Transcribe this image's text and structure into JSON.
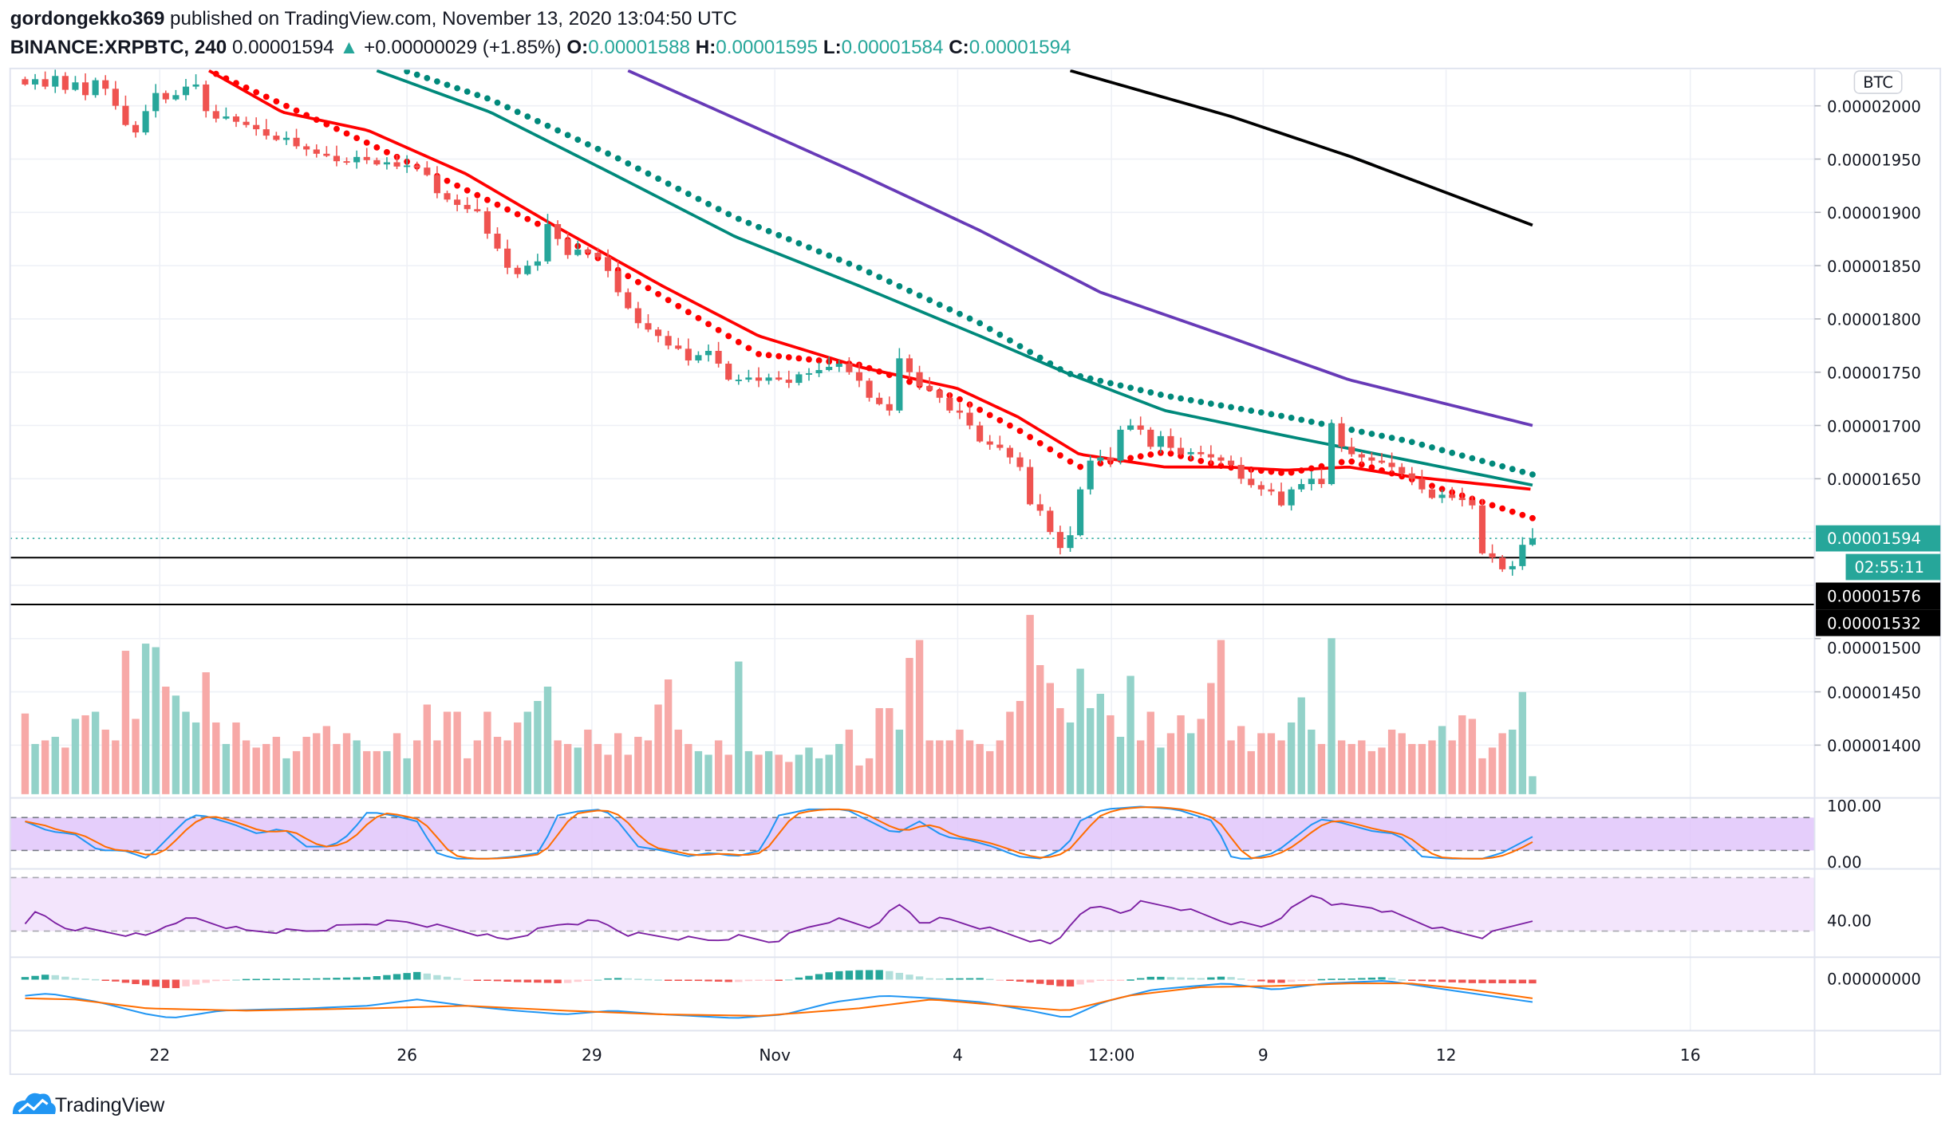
{
  "header": {
    "author": "gordongekko369",
    "published": " published on TradingView.com, November 13, 2020 13:04:50 UTC",
    "symbol": "BINANCE:XRPBTC, 240",
    "last": "0.00001594",
    "change": "+0.00000029 (+1.85%)",
    "o_label": "O:",
    "o": "0.00001588",
    "h_label": "H:",
    "h": "0.00001595",
    "l_label": "L:",
    "l": "0.00001584",
    "c_label": "C:",
    "c": "0.00001594",
    "direction_icon": "triangle-up-icon"
  },
  "price_axis": {
    "currency_badge": "BTC",
    "ticks": [
      "0.00002000",
      "0.00001950",
      "0.00001900",
      "0.00001850",
      "0.00001800",
      "0.00001750",
      "0.00001700",
      "0.00001650",
      "0.00001500",
      "0.00001450",
      "0.00001400"
    ],
    "last_price_label": "0.00001594",
    "countdown": "02:55:11",
    "line_labels": [
      "0.00001576",
      "0.00001532"
    ]
  },
  "stoch_axis": {
    "ticks": [
      "100.00",
      "0.00"
    ]
  },
  "rsi_axis": {
    "ticks": [
      "40.00"
    ]
  },
  "macd_axis": {
    "ticks": [
      "0.00000000"
    ]
  },
  "time_axis": {
    "labels": [
      {
        "text": "22",
        "bar": 13.4
      },
      {
        "text": "26",
        "bar": 38
      },
      {
        "text": "29",
        "bar": 56.4
      },
      {
        "text": "Nov",
        "bar": 74.6
      },
      {
        "text": "4",
        "bar": 92.8
      },
      {
        "text": "12:00",
        "bar": 108.1
      },
      {
        "text": "9",
        "bar": 123.2
      },
      {
        "text": "12",
        "bar": 141.4
      },
      {
        "text": "16",
        "bar": 165.7
      }
    ]
  },
  "footer": {
    "brand": "TradingView",
    "logo_icon": "tradingview-cloud-icon"
  },
  "colors": {
    "up": "#26a69a",
    "down": "#ef5350",
    "vol_up": "#93d2c9",
    "vol_down": "#f7a9a7",
    "ema_fast": "#ff0000",
    "sma_mid": "#00897b",
    "ma_100": "#673ab7",
    "ma_200": "#000000",
    "stoch_k": "#2196f3",
    "stoch_d": "#ff6d00",
    "rsi": "#7b1fa2",
    "macd": "#2196f3",
    "signal": "#ff6d00"
  },
  "chart_data": {
    "type": "candlestick",
    "interval": "240",
    "close": [
      2.02e-05,
      2.025e-05,
      2.018e-05,
      2.028e-05,
      2.015e-05,
      2.022e-05,
      2.01e-05,
      2.024e-05,
      2.016e-05,
      2e-05,
      1.982e-05,
      1.975e-05,
      1.995e-05,
      2.012e-05,
      2.006e-05,
      2.01e-05,
      2.018e-05,
      2.02e-05,
      1.995e-05,
      1.988e-05,
      1.99e-05,
      1.985e-05,
      1.982e-05,
      1.978e-05,
      1.972e-05,
      1.968e-05,
      1.97e-05,
      1.962e-05,
      1.959e-05,
      1.955e-05,
      1.953e-05,
      1.948e-05,
      1.947e-05,
      1.952e-05,
      1.949e-05,
      1.945e-05,
      1.947e-05,
      1.943e-05,
      1.944e-05,
      1.942e-05,
      1.935e-05,
      1.918e-05,
      1.912e-05,
      1.907e-05,
      1.903e-05,
      1.901e-05,
      1.88e-05,
      1.866e-05,
      1.848e-05,
      1.842e-05,
      1.85e-05,
      1.854e-05,
      1.889e-05,
      1.875e-05,
      1.86e-05,
      1.865e-05,
      1.862e-05,
      1.858e-05,
      1.845e-05,
      1.825e-05,
      1.81e-05,
      1.796e-05,
      1.79e-05,
      1.784e-05,
      1.775e-05,
      1.772e-05,
      1.761e-05,
      1.766e-05,
      1.77e-05,
      1.758e-05,
      1.743e-05,
      1.743e-05,
      1.745e-05,
      1.742e-05,
      1.745e-05,
      1.743e-05,
      1.74e-05,
      1.748e-05,
      1.749e-05,
      1.752e-05,
      1.755e-05,
      1.758e-05,
      1.75e-05,
      1.742e-05,
      1.726e-05,
      1.72e-05,
      1.714e-05,
      1.763e-05,
      1.75e-05,
      1.737e-05,
      1.733e-05,
      1.726e-05,
      1.714e-05,
      1.712e-05,
      1.7e-05,
      1.685e-05,
      1.682e-05,
      1.679e-05,
      1.67e-05,
      1.661e-05,
      1.626e-05,
      1.62e-05,
      1.6e-05,
      1.585e-05,
      1.597e-05,
      1.64e-05,
      1.667e-05,
      1.67e-05,
      1.667e-05,
      1.696e-05,
      1.7e-05,
      1.696e-05,
      1.68e-05,
      1.69e-05,
      1.679e-05,
      1.673e-05,
      1.675e-05,
      1.673e-05,
      1.67e-05,
      1.667e-05,
      1.663e-05,
      1.65e-05,
      1.644e-05,
      1.64e-05,
      1.638e-05,
      1.625e-05,
      1.64e-05,
      1.645e-05,
      1.65e-05,
      1.645e-05,
      1.702e-05,
      1.68e-05,
      1.673e-05,
      1.67e-05,
      1.667e-05,
      1.665e-05,
      1.661e-05,
      1.655e-05,
      1.65e-05,
      1.64e-05,
      1.632e-05,
      1.635e-05,
      1.632e-05,
      1.63e-05,
      1.625e-05,
      1.58e-05,
      1.576e-05,
      1.565e-05,
      1.568e-05,
      1.588e-05,
      1.594e-05
    ],
    "volume_relative": [
      45,
      28,
      30,
      32,
      26,
      42,
      44,
      46,
      36,
      30,
      80,
      42,
      84,
      82,
      60,
      55,
      46,
      40,
      68,
      40,
      28,
      40,
      30,
      26,
      28,
      32,
      20,
      24,
      32,
      34,
      38,
      28,
      34,
      30,
      24,
      24,
      24,
      34,
      20,
      30,
      50,
      30,
      46,
      46,
      20,
      30,
      46,
      32,
      30,
      40,
      46,
      52,
      60,
      30,
      28,
      26,
      36,
      28,
      22,
      34,
      22,
      32,
      30,
      50,
      64,
      36,
      28,
      24,
      22,
      30,
      22,
      74,
      24,
      22,
      24,
      22,
      18,
      22,
      26,
      20,
      22,
      28,
      36,
      16,
      20,
      48,
      48,
      36,
      76,
      86,
      30,
      30,
      30,
      36,
      30,
      28,
      24,
      30,
      46,
      52,
      100,
      72,
      62,
      48,
      40,
      70,
      48,
      56,
      44,
      32,
      66,
      30,
      46,
      26,
      34,
      44,
      34,
      42,
      62,
      86,
      30,
      38,
      24,
      34,
      34,
      30,
      40,
      54,
      36,
      28,
      87,
      30,
      28,
      30,
      24,
      26,
      36,
      34,
      28,
      28,
      30,
      38,
      30,
      44,
      42,
      20,
      26,
      34,
      36,
      57,
      10
    ],
    "moving_averages": [
      {
        "style": "line",
        "color": "#000000",
        "points": [
          [
            104,
            2.033e-05
          ],
          [
            120,
            1.99e-05
          ],
          [
            132,
            1.952e-05
          ],
          [
            150,
            1.888e-05
          ]
        ]
      },
      {
        "style": "line",
        "color": "#673ab7",
        "points": [
          [
            60,
            2.033e-05
          ],
          [
            70.7,
            1.988e-05
          ],
          [
            83,
            1.936e-05
          ],
          [
            95,
            1.883e-05
          ],
          [
            107,
            1.825e-05
          ],
          [
            119.5,
            1.784e-05
          ],
          [
            131.7,
            1.743e-05
          ],
          [
            150,
            1.7e-05
          ]
        ]
      },
      {
        "style": "line",
        "color": "#00897b",
        "points": [
          [
            35,
            2.033e-05
          ],
          [
            46.3,
            1.994e-05
          ],
          [
            58.5,
            1.936e-05
          ],
          [
            70.7,
            1.877e-05
          ],
          [
            83,
            1.831e-05
          ],
          [
            95,
            1.784e-05
          ],
          [
            103.7,
            1.749e-05
          ],
          [
            113.4,
            1.714e-05
          ],
          [
            125.6,
            1.69e-05
          ],
          [
            137.8,
            1.667e-05
          ],
          [
            150,
            1.644e-05
          ]
        ]
      },
      {
        "style": "dots",
        "color": "#00897b",
        "points": [
          [
            37.8,
            2.033e-05
          ],
          [
            46.3,
            2.006e-05
          ],
          [
            58.5,
            1.953e-05
          ],
          [
            70.7,
            1.895e-05
          ],
          [
            83,
            1.848e-05
          ],
          [
            95,
            1.796e-05
          ],
          [
            103.7,
            1.749e-05
          ],
          [
            113.4,
            1.728e-05
          ],
          [
            125.6,
            1.708e-05
          ],
          [
            137.8,
            1.685e-05
          ],
          [
            150,
            1.654e-05
          ]
        ]
      },
      {
        "style": "line",
        "color": "#ff0000",
        "points": [
          [
            18.3,
            2.033e-05
          ],
          [
            25.6,
            1.994e-05
          ],
          [
            34.1,
            1.977e-05
          ],
          [
            43.9,
            1.936e-05
          ],
          [
            52.4,
            1.889e-05
          ],
          [
            63.4,
            1.831e-05
          ],
          [
            73,
            1.784e-05
          ],
          [
            83,
            1.755e-05
          ],
          [
            92.7,
            1.735e-05
          ],
          [
            98.8,
            1.708e-05
          ],
          [
            104.9,
            1.673e-05
          ],
          [
            113.4,
            1.661e-05
          ],
          [
            119.5,
            1.661e-05
          ],
          [
            125.6,
            1.658e-05
          ],
          [
            131.7,
            1.661e-05
          ],
          [
            137.8,
            1.652e-05
          ],
          [
            150,
            1.64e-05
          ]
        ]
      },
      {
        "style": "dots",
        "color": "#ff0000",
        "points": [
          [
            18.3,
            2.033e-05
          ],
          [
            34.1,
            1.965e-05
          ],
          [
            52.4,
            1.883e-05
          ],
          [
            73,
            1.767e-05
          ],
          [
            83,
            1.757e-05
          ],
          [
            92.7,
            1.726e-05
          ],
          [
            98.8,
            1.696e-05
          ],
          [
            104.9,
            1.661e-05
          ],
          [
            113.4,
            1.675e-05
          ],
          [
            119.5,
            1.661e-05
          ],
          [
            125.6,
            1.655e-05
          ],
          [
            131.7,
            1.667e-05
          ],
          [
            137.8,
            1.65e-05
          ],
          [
            150,
            1.613e-05
          ]
        ]
      }
    ],
    "horizontal_lines": [
      {
        "price": 1.594e-05,
        "style": "dotted",
        "color": "#26a69a"
      },
      {
        "price": 1.576e-05,
        "style": "solid",
        "color": "#000000"
      },
      {
        "price": 1.532e-05,
        "style": "solid",
        "color": "#000000"
      }
    ],
    "stochastic": {
      "levels": [
        80,
        20
      ],
      "k": [
        [
          0,
          61
        ],
        [
          0,
          73
        ],
        [
          2.4,
          55
        ],
        [
          4.9,
          50
        ],
        [
          7.3,
          20
        ],
        [
          9.8,
          20
        ],
        [
          12.2,
          5
        ],
        [
          14.6,
          50
        ],
        [
          16.5,
          84
        ],
        [
          17.7,
          84
        ],
        [
          20.7,
          68
        ],
        [
          23.2,
          50
        ],
        [
          25.6,
          61
        ],
        [
          28,
          27
        ],
        [
          30.5,
          27
        ],
        [
          32.3,
          50
        ],
        [
          34.1,
          91
        ],
        [
          36.6,
          84
        ],
        [
          39,
          73
        ],
        [
          40.9,
          16
        ],
        [
          42.7,
          5
        ],
        [
          46.3,
          5
        ],
        [
          48.8,
          9
        ],
        [
          51.2,
          16
        ],
        [
          53,
          84
        ],
        [
          54.9,
          91
        ],
        [
          57.3,
          95
        ],
        [
          58.5,
          84
        ],
        [
          61,
          27
        ],
        [
          63.4,
          20
        ],
        [
          65.9,
          9
        ],
        [
          68.3,
          16
        ],
        [
          70.7,
          9
        ],
        [
          73.2,
          20
        ],
        [
          75,
          84
        ],
        [
          78,
          95
        ],
        [
          81.7,
          95
        ],
        [
          84.1,
          73
        ],
        [
          86.6,
          50
        ],
        [
          89,
          73
        ],
        [
          91.5,
          45
        ],
        [
          93.9,
          39
        ],
        [
          96.3,
          27
        ],
        [
          98.8,
          9
        ],
        [
          101.2,
          5
        ],
        [
          103.7,
          27
        ],
        [
          104.9,
          73
        ],
        [
          107.3,
          95
        ],
        [
          111,
          100
        ],
        [
          114.6,
          95
        ],
        [
          118.3,
          73
        ],
        [
          120.1,
          5
        ],
        [
          122,
          5
        ],
        [
          124.4,
          16
        ],
        [
          126.8,
          50
        ],
        [
          128.7,
          77
        ],
        [
          130.5,
          73
        ],
        [
          134.1,
          55
        ],
        [
          136.6,
          50
        ],
        [
          139,
          9
        ],
        [
          141.5,
          5
        ],
        [
          145.1,
          5
        ],
        [
          147,
          16
        ],
        [
          150,
          45
        ]
      ]
    },
    "rsi": {
      "band": [
        70,
        30
      ],
      "values": [
        [
          0,
          37
        ],
        [
          1.2,
          44
        ],
        [
          3.7,
          33
        ],
        [
          7.3,
          30
        ],
        [
          12.2,
          26
        ],
        [
          14.6,
          37
        ],
        [
          17,
          39
        ],
        [
          22,
          30
        ],
        [
          28,
          30
        ],
        [
          34.1,
          36
        ],
        [
          37.8,
          37
        ],
        [
          41.5,
          33
        ],
        [
          45.1,
          28
        ],
        [
          47.6,
          23
        ],
        [
          51.2,
          31
        ],
        [
          53.7,
          36
        ],
        [
          57.3,
          37
        ],
        [
          59.8,
          28
        ],
        [
          63.4,
          26
        ],
        [
          68.3,
          23
        ],
        [
          70.7,
          26
        ],
        [
          74.4,
          22
        ],
        [
          78,
          33
        ],
        [
          80.5,
          39
        ],
        [
          84.1,
          33
        ],
        [
          87.2,
          50
        ],
        [
          89,
          37
        ],
        [
          91.5,
          39
        ],
        [
          95.1,
          33
        ],
        [
          98.8,
          26
        ],
        [
          102.4,
          19
        ],
        [
          104.9,
          44
        ],
        [
          107.3,
          48
        ],
        [
          109.1,
          44
        ],
        [
          111,
          51
        ],
        [
          114.6,
          48
        ],
        [
          119.5,
          37
        ],
        [
          123.2,
          33
        ],
        [
          125.6,
          44
        ],
        [
          128.3,
          58
        ],
        [
          130.5,
          49
        ],
        [
          134.1,
          48
        ],
        [
          137.8,
          39
        ],
        [
          141.5,
          30
        ],
        [
          145.1,
          26
        ],
        [
          150,
          39
        ]
      ]
    },
    "macd": {
      "macd": [
        [
          0,
          -0.43
        ],
        [
          2.4,
          -0.37
        ],
        [
          7.3,
          -0.6
        ],
        [
          12.2,
          -0.93
        ],
        [
          14.6,
          -1.03
        ],
        [
          19.5,
          -0.83
        ],
        [
          28,
          -0.77
        ],
        [
          34.1,
          -0.7
        ],
        [
          39,
          -0.53
        ],
        [
          43.9,
          -0.7
        ],
        [
          48.8,
          -0.83
        ],
        [
          53.7,
          -0.93
        ],
        [
          58.5,
          -0.83
        ],
        [
          63.4,
          -0.93
        ],
        [
          70.7,
          -1.03
        ],
        [
          75.6,
          -0.93
        ],
        [
          80.5,
          -0.6
        ],
        [
          85.4,
          -0.43
        ],
        [
          90.2,
          -0.5
        ],
        [
          95.1,
          -0.6
        ],
        [
          100,
          -0.83
        ],
        [
          103.7,
          -1.03
        ],
        [
          107.3,
          -0.6
        ],
        [
          112.2,
          -0.27
        ],
        [
          119.5,
          -0.1
        ],
        [
          124.4,
          -0.27
        ],
        [
          129.3,
          -0.1
        ],
        [
          135.4,
          -0.03
        ],
        [
          141.5,
          -0.27
        ],
        [
          150,
          -0.6
        ]
      ],
      "signal": [
        [
          0,
          -0.5
        ],
        [
          4.9,
          -0.53
        ],
        [
          12.2,
          -0.77
        ],
        [
          22,
          -0.83
        ],
        [
          34.1,
          -0.77
        ],
        [
          43.9,
          -0.7
        ],
        [
          53.7,
          -0.83
        ],
        [
          63.4,
          -0.93
        ],
        [
          73.2,
          -0.97
        ],
        [
          82.9,
          -0.77
        ],
        [
          90.2,
          -0.53
        ],
        [
          97.6,
          -0.7
        ],
        [
          103.7,
          -0.83
        ],
        [
          109.8,
          -0.43
        ],
        [
          117,
          -0.2
        ],
        [
          124.4,
          -0.17
        ],
        [
          131.7,
          -0.1
        ],
        [
          137.8,
          -0.1
        ],
        [
          143.9,
          -0.27
        ],
        [
          150,
          -0.5
        ]
      ]
    }
  }
}
